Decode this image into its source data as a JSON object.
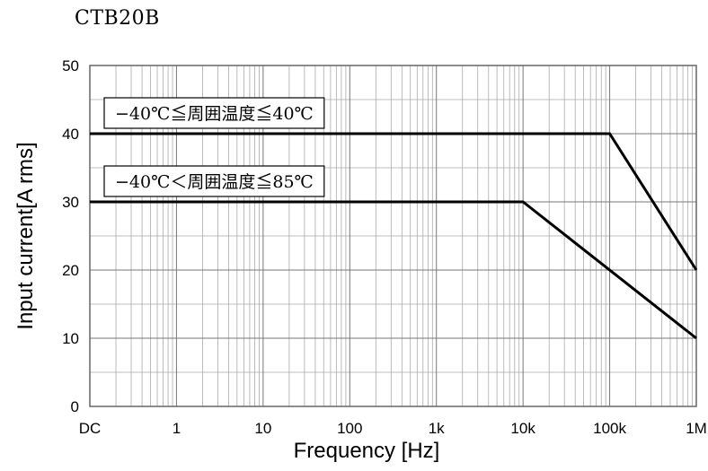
{
  "chart_data": {
    "type": "line",
    "title": "CTB20B",
    "xlabel": "Frequency [Hz]",
    "ylabel": "Input current[A rms]",
    "x_scale": "log",
    "x_tick_labels": [
      "DC",
      "1",
      "10",
      "100",
      "1k",
      "10k",
      "100k",
      "1M"
    ],
    "y_ticks": [
      0,
      10,
      20,
      30,
      40,
      50
    ],
    "ylim": [
      0,
      50
    ],
    "grid": true,
    "series": [
      {
        "name": "−40℃≦周囲温度≦40℃",
        "points": [
          {
            "x": "DC",
            "y": 40
          },
          {
            "x": "100k",
            "y": 40
          },
          {
            "x": "1M",
            "y": 20
          }
        ]
      },
      {
        "name": "−40℃＜周囲温度≦85℃",
        "points": [
          {
            "x": "DC",
            "y": 30
          },
          {
            "x": "10k",
            "y": 30
          },
          {
            "x": "1M",
            "y": 10
          }
        ]
      }
    ]
  }
}
